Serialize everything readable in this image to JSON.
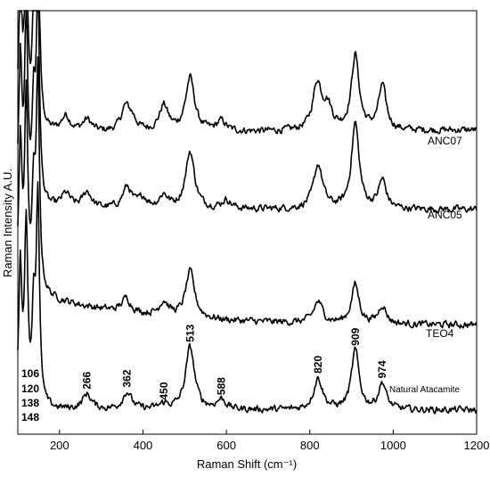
{
  "chart_data": {
    "type": "line",
    "title": "",
    "xlabel": "Raman Shift (cm⁻¹)",
    "ylabel": "Raman Intensity A.U.",
    "xlim": [
      100,
      1200
    ],
    "x_ticks": [
      200,
      400,
      600,
      800,
      1000,
      1200
    ],
    "grid": false,
    "y_tick_labels": false,
    "series": [
      {
        "name": "ANC07",
        "peaks": [
          {
            "x": 106,
            "h": 20
          },
          {
            "x": 120,
            "h": 26
          },
          {
            "x": 138,
            "h": 13
          },
          {
            "x": 148,
            "h": 30
          },
          {
            "x": 215,
            "h": 2.2
          },
          {
            "x": 266,
            "h": 1.7
          },
          {
            "x": 358,
            "h": 3.2
          },
          {
            "x": 374,
            "h": 1.5
          },
          {
            "x": 450,
            "h": 3.6
          },
          {
            "x": 513,
            "h": 7.5
          },
          {
            "x": 588,
            "h": 1.4
          },
          {
            "x": 818,
            "h": 6.5
          },
          {
            "x": 843,
            "h": 3.0
          },
          {
            "x": 909,
            "h": 10.5
          },
          {
            "x": 974,
            "h": 6.2
          }
        ],
        "baseline": [
          0,
          0.5
        ]
      },
      {
        "name": "ANC05",
        "peaks": [
          {
            "x": 106,
            "h": 20
          },
          {
            "x": 120,
            "h": 26
          },
          {
            "x": 138,
            "h": 13
          },
          {
            "x": 148,
            "h": 30
          },
          {
            "x": 215,
            "h": 2.0
          },
          {
            "x": 266,
            "h": 2.3
          },
          {
            "x": 362,
            "h": 3.0
          },
          {
            "x": 400,
            "h": 1.4
          },
          {
            "x": 450,
            "h": 1.8
          },
          {
            "x": 513,
            "h": 8.0
          },
          {
            "x": 600,
            "h": 1.2
          },
          {
            "x": 820,
            "h": 6.2
          },
          {
            "x": 909,
            "h": 12.0
          },
          {
            "x": 974,
            "h": 4.0
          }
        ],
        "baseline": [
          0,
          0
        ]
      },
      {
        "name": "TEO4",
        "peaks": [
          {
            "x": 106,
            "h": 20
          },
          {
            "x": 120,
            "h": 26
          },
          {
            "x": 138,
            "h": 13
          },
          {
            "x": 148,
            "h": 30
          },
          {
            "x": 360,
            "h": 2.0
          },
          {
            "x": 450,
            "h": 2.0
          },
          {
            "x": 513,
            "h": 6.5
          },
          {
            "x": 820,
            "h": 3.0
          },
          {
            "x": 909,
            "h": 5.5
          },
          {
            "x": 974,
            "h": 2.6
          }
        ],
        "baseline": [
          4,
          0
        ]
      },
      {
        "name": "Natural Atacamite",
        "peaks": [
          {
            "x": 106,
            "h": 20
          },
          {
            "x": 120,
            "h": 26
          },
          {
            "x": 138,
            "h": 13
          },
          {
            "x": 148,
            "h": 30
          },
          {
            "x": 266,
            "h": 2.2
          },
          {
            "x": 362,
            "h": 2.5
          },
          {
            "x": 450,
            "h": 0.7
          },
          {
            "x": 513,
            "h": 9.0
          },
          {
            "x": 588,
            "h": 1.4
          },
          {
            "x": 820,
            "h": 4.5
          },
          {
            "x": 909,
            "h": 8.5
          },
          {
            "x": 974,
            "h": 3.8
          }
        ],
        "baseline": [
          0,
          0
        ]
      }
    ],
    "peak_labels": [
      "266",
      "362",
      "450",
      "513",
      "588",
      "820",
      "909",
      "974"
    ],
    "low_peak_labels": [
      "106",
      "120",
      "138",
      "148"
    ]
  }
}
